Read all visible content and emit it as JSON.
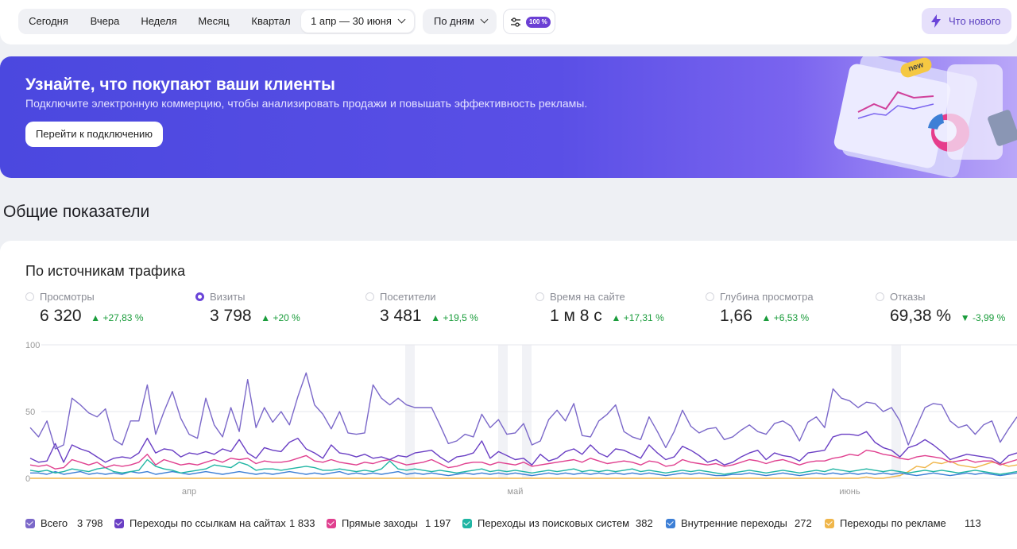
{
  "toolbar": {
    "periods": [
      "Сегодня",
      "Вчера",
      "Неделя",
      "Месяц",
      "Квартал"
    ],
    "date_range": "1 апр — 30 июня",
    "grouping": "По дням",
    "sampling_badge": "100 %",
    "whats_new": "Что нового"
  },
  "banner": {
    "title": "Узнайте, что покупают ваши клиенты",
    "subtitle": "Подключите электронную коммерцию, чтобы анализировать продажи и повышать эффективность рекламы.",
    "button": "Перейти к подключению",
    "badge": "new"
  },
  "section_title": "Общие показатели",
  "card": {
    "title": "По источникам трафика",
    "metrics": [
      {
        "label": "Просмотры",
        "value": "6 320",
        "delta": "▲ +27,83 %",
        "selected": false
      },
      {
        "label": "Визиты",
        "value": "3 798",
        "delta": "▲ +20 %",
        "selected": true
      },
      {
        "label": "Посетители",
        "value": "3 481",
        "delta": "▲ +19,5 %",
        "selected": false
      },
      {
        "label": "Время на сайте",
        "value": "1 м 8 с",
        "delta": "▲ +17,31 %",
        "selected": false
      },
      {
        "label": "Глубина просмотра",
        "value": "1,66",
        "delta": "▲ +6,53 %",
        "selected": false
      },
      {
        "label": "Отказы",
        "value": "69,38 %",
        "delta": "▼ -3,99 %",
        "selected": false
      }
    ],
    "legend": [
      {
        "name": "Всего",
        "value": "3 798",
        "color": "#7b68c9"
      },
      {
        "name": "Переходы по ссылкам на сайтах",
        "value": "1 833",
        "color": "#6a3fc4"
      },
      {
        "name": "Прямые заходы",
        "value": "1 197",
        "color": "#e0408f"
      },
      {
        "name": "Переходы из поисковых систем",
        "value": "382",
        "color": "#1fb5a3"
      },
      {
        "name": "Внутренние переходы",
        "value": "272",
        "color": "#3d7fd6"
      },
      {
        "name": "Переходы по рекламе",
        "value": "113",
        "color": "#f0b64a"
      }
    ]
  },
  "chart_data": {
    "type": "line",
    "yticks": [
      "100",
      "50",
      "0"
    ],
    "ylim": [
      0,
      100
    ],
    "xtick_labels": [
      "апр",
      "май",
      "июнь"
    ],
    "grid": true,
    "series": [
      {
        "name": "Всего",
        "color": "#7b68c9",
        "values": [
          38,
          31,
          43,
          22,
          25,
          60,
          55,
          49,
          46,
          52,
          29,
          25,
          43,
          43,
          70,
          33,
          50,
          65,
          45,
          33,
          30,
          60,
          40,
          31,
          53,
          35,
          74,
          38,
          53,
          42,
          50,
          40,
          61,
          79,
          55,
          48,
          37,
          50,
          34,
          33,
          34,
          70,
          60,
          55,
          60,
          55,
          53,
          53,
          53,
          40,
          26,
          28,
          33,
          31,
          48,
          38,
          44,
          33,
          34,
          41,
          25,
          28,
          44,
          51,
          43,
          56,
          32,
          31,
          43,
          48,
          55,
          35,
          31,
          29,
          46,
          35,
          23,
          35,
          51,
          39,
          34,
          37,
          38,
          29,
          31,
          36,
          40,
          35,
          33,
          41,
          43,
          39,
          28,
          42,
          46,
          38,
          67,
          60,
          58,
          53,
          57,
          56,
          50,
          53,
          43,
          25,
          39,
          53,
          56,
          55,
          43,
          38,
          40,
          33,
          40,
          43,
          27,
          37,
          46
        ]
      },
      {
        "name": "Переходы по ссылкам на сайтах",
        "color": "#6a3fc4",
        "values": [
          15,
          12,
          13,
          26,
          12,
          25,
          22,
          20,
          16,
          12,
          15,
          16,
          15,
          19,
          30,
          19,
          22,
          21,
          16,
          19,
          18,
          20,
          18,
          22,
          20,
          29,
          19,
          15,
          23,
          21,
          20,
          27,
          30,
          22,
          19,
          15,
          25,
          19,
          18,
          16,
          18,
          15,
          16,
          14,
          17,
          16,
          19,
          20,
          21,
          16,
          12,
          16,
          17,
          19,
          28,
          15,
          20,
          17,
          14,
          15,
          10,
          18,
          13,
          15,
          20,
          22,
          18,
          25,
          19,
          16,
          22,
          21,
          18,
          15,
          25,
          19,
          14,
          16,
          24,
          21,
          17,
          12,
          14,
          10,
          12,
          16,
          19,
          21,
          14,
          19,
          17,
          16,
          13,
          19,
          20,
          21,
          31,
          33,
          33,
          32,
          35,
          27,
          23,
          21,
          16,
          23,
          25,
          29,
          25,
          20,
          14,
          16,
          18,
          17,
          16,
          15,
          11,
          17,
          19
        ]
      },
      {
        "name": "Прямые заходы",
        "color": "#e0408f",
        "values": [
          10,
          9,
          10,
          7,
          8,
          14,
          12,
          10,
          12,
          8,
          10,
          9,
          10,
          12,
          18,
          10,
          14,
          12,
          10,
          11,
          10,
          12,
          14,
          12,
          15,
          14,
          15,
          11,
          13,
          12,
          12,
          13,
          15,
          17,
          13,
          12,
          14,
          12,
          11,
          10,
          12,
          11,
          13,
          14,
          12,
          10,
          11,
          12,
          14,
          11,
          8,
          9,
          11,
          12,
          12,
          10,
          12,
          11,
          10,
          12,
          9,
          10,
          11,
          12,
          13,
          14,
          12,
          15,
          13,
          11,
          12,
          13,
          12,
          10,
          13,
          12,
          9,
          10,
          14,
          12,
          11,
          10,
          11,
          9,
          10,
          12,
          14,
          13,
          11,
          13,
          14,
          12,
          10,
          12,
          13,
          13,
          15,
          16,
          18,
          17,
          21,
          20,
          18,
          17,
          15,
          14,
          16,
          17,
          16,
          15,
          12,
          13,
          14,
          12,
          13,
          13,
          10,
          12,
          14
        ]
      },
      {
        "name": "Переходы из поисковых систем",
        "color": "#1fb5a3",
        "values": [
          6,
          5,
          6,
          4,
          5,
          7,
          6,
          5,
          7,
          8,
          5,
          4,
          5,
          6,
          14,
          9,
          7,
          6,
          4,
          5,
          6,
          7,
          10,
          9,
          8,
          12,
          10,
          6,
          7,
          7,
          6,
          7,
          8,
          9,
          8,
          6,
          6,
          7,
          6,
          5,
          6,
          5,
          7,
          13,
          7,
          6,
          7,
          6,
          5,
          6,
          5,
          4,
          5,
          6,
          7,
          5,
          6,
          5,
          6,
          5,
          4,
          5,
          6,
          5,
          6,
          7,
          5,
          6,
          5,
          6,
          5,
          6,
          7,
          5,
          6,
          5,
          4,
          5,
          6,
          5,
          6,
          5,
          4,
          3,
          4,
          5,
          6,
          5,
          4,
          5,
          6,
          5,
          4,
          5,
          6,
          5,
          7,
          6,
          5,
          6,
          7,
          6,
          5,
          6,
          5,
          4,
          5,
          6,
          5,
          6,
          5,
          4,
          5,
          6,
          5,
          4,
          3,
          4,
          5
        ]
      },
      {
        "name": "Внутренние переходы",
        "color": "#3d7fd6",
        "values": [
          4,
          4,
          3,
          5,
          3,
          4,
          5,
          3,
          4,
          3,
          4,
          3,
          5,
          4,
          5,
          3,
          4,
          5,
          4,
          3,
          4,
          5,
          4,
          3,
          4,
          5,
          4,
          3,
          4,
          3,
          4,
          5,
          4,
          3,
          4,
          3,
          4,
          5,
          3,
          4,
          3,
          4,
          3,
          4,
          5,
          3,
          4,
          3,
          4,
          3,
          2,
          3,
          4,
          3,
          4,
          3,
          4,
          3,
          4,
          3,
          2,
          3,
          4,
          3,
          4,
          3,
          4,
          3,
          4,
          3,
          4,
          3,
          4,
          3,
          4,
          3,
          2,
          3,
          4,
          3,
          4,
          3,
          2,
          2,
          3,
          3,
          4,
          3,
          2,
          3,
          4,
          3,
          2,
          3,
          4,
          3,
          4,
          3,
          4,
          3,
          4,
          3,
          4,
          3,
          4,
          3,
          2,
          3,
          4,
          3,
          2,
          3,
          4,
          3,
          4,
          3,
          2,
          3,
          4
        ]
      },
      {
        "name": "Переходы по рекламе",
        "color": "#f0b64a",
        "values": [
          0,
          0,
          0,
          0,
          0,
          0,
          0,
          0,
          0,
          0,
          0,
          0,
          0,
          0,
          0,
          0,
          0,
          0,
          0,
          0,
          0,
          0,
          0,
          0,
          0,
          0,
          0,
          0,
          0,
          0,
          0,
          0,
          0,
          0,
          0,
          0,
          0,
          0,
          0,
          0,
          0,
          0,
          0,
          0,
          0,
          0,
          0,
          0,
          0,
          0,
          0,
          0,
          0,
          0,
          0,
          0,
          0,
          0,
          0,
          0,
          0,
          0,
          0,
          0,
          0,
          0,
          0,
          0,
          0,
          0,
          0,
          0,
          0,
          0,
          0,
          0,
          0,
          0,
          0,
          0,
          0,
          0,
          0,
          0,
          0,
          0,
          0,
          0,
          0,
          0,
          0,
          0,
          0,
          0,
          0,
          0,
          0,
          0,
          0,
          0,
          1,
          0,
          0,
          1,
          2,
          5,
          9,
          8,
          12,
          11,
          13,
          10,
          9,
          8,
          10,
          12,
          11,
          9,
          10
        ]
      }
    ]
  }
}
